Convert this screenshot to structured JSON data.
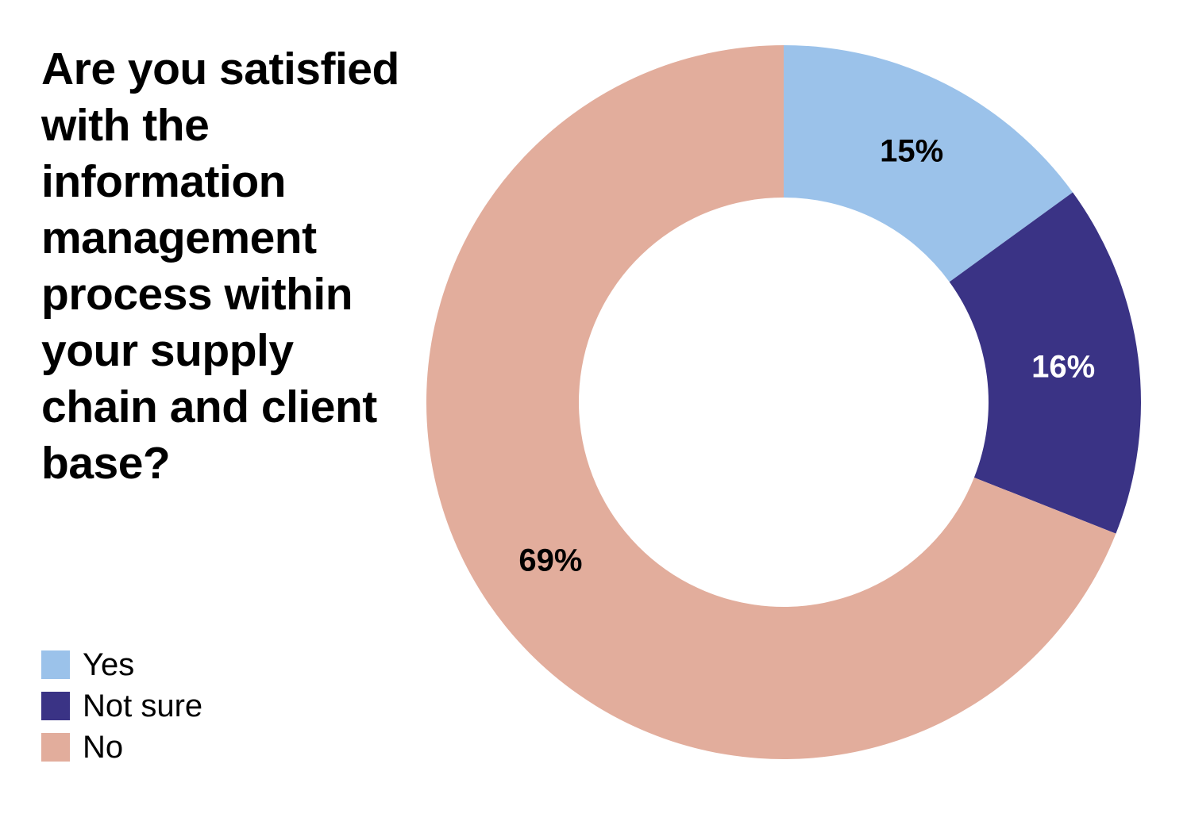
{
  "chart_data": {
    "type": "pie",
    "title": "Are you satisfied with the information management process within your supply chain and client base?",
    "categories": [
      "Yes",
      "Not sure",
      "No"
    ],
    "values": [
      15,
      16,
      69
    ],
    "value_labels": [
      "15%",
      "16%",
      "69%"
    ],
    "colors": [
      "#9bc2ea",
      "#3a3385",
      "#e2ad9c"
    ],
    "label_colors": [
      "#000000",
      "#ffffff",
      "#000000"
    ],
    "donut": true,
    "legend": "bottom-left"
  }
}
